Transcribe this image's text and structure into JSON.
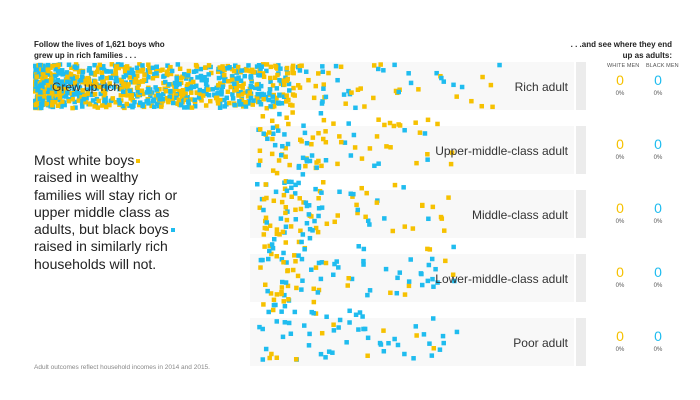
{
  "header": {
    "intro_line1": "Follow the lives of  1,621  boys who",
    "intro_line2": "grew up in rich families . . .",
    "outro_line1": ". . .and see where they end",
    "outro_line2": "up as adults:"
  },
  "start_label": "Grew up rich",
  "columns": {
    "white": "WHITE MEN",
    "black": "BLACK MEN"
  },
  "colors": {
    "white_men": "#f6c100",
    "black_men": "#1fbcef",
    "band": "#f8f8f8",
    "bar": "#ececec"
  },
  "story": {
    "part1": "Most white boys",
    "part2": "raised in wealthy families will stay rich or upper middle class as adults, but black boys",
    "part3": "raised in similarly rich households will not."
  },
  "note": "Adult outcomes reflect household incomes in 2014 and 2015.",
  "chart_data": {
    "type": "table",
    "categories": [
      "Rich adult",
      "Upper-middle-class adult",
      "Middle-class adult",
      "Lower-middle-class adult",
      "Poor adult"
    ],
    "series": [
      {
        "name": "WHITE MEN",
        "values": [
          "0",
          "0",
          "0",
          "0",
          "0"
        ],
        "pct": [
          "0%",
          "0%",
          "0%",
          "0%",
          "0%"
        ]
      },
      {
        "name": "BLACK MEN",
        "values": [
          "0",
          "0",
          "0",
          "0",
          "0"
        ],
        "pct": [
          "0%",
          "0%",
          "0%",
          "0%",
          "0%"
        ]
      }
    ]
  }
}
